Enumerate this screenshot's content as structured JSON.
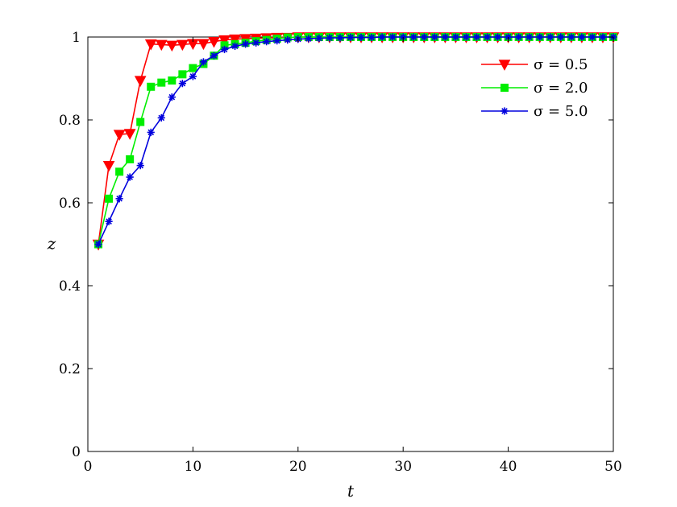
{
  "chart_data": {
    "type": "line",
    "title": "",
    "xlabel": "t",
    "ylabel": "z",
    "xlim": [
      0,
      50
    ],
    "ylim": [
      0,
      1
    ],
    "xticks": [
      0,
      10,
      20,
      30,
      40,
      50
    ],
    "yticks": [
      0,
      0.2,
      0.4,
      0.6,
      0.8,
      1
    ],
    "xtick_labels": [
      "0",
      "10",
      "20",
      "30",
      "40",
      "50"
    ],
    "ytick_labels": [
      "0",
      "0.2",
      "0.4",
      "0.6",
      "0.8",
      "1"
    ],
    "grid": false,
    "legend_position": "top-right",
    "x": [
      1,
      2,
      3,
      4,
      5,
      6,
      7,
      8,
      9,
      10,
      11,
      12,
      13,
      14,
      15,
      16,
      17,
      18,
      19,
      20,
      21,
      22,
      23,
      24,
      25,
      26,
      27,
      28,
      29,
      30,
      31,
      32,
      33,
      34,
      35,
      36,
      37,
      38,
      39,
      40,
      41,
      42,
      43,
      44,
      45,
      46,
      47,
      48,
      49,
      50
    ],
    "series": [
      {
        "name": "σ = 0.5",
        "color": "#ff0000",
        "marker": "triangle-down",
        "values": [
          0.5,
          0.69,
          0.765,
          0.767,
          0.895,
          0.983,
          0.982,
          0.98,
          0.982,
          0.984,
          0.984,
          0.989,
          0.993,
          0.995,
          0.996,
          0.997,
          0.998,
          0.999,
          0.999,
          1.0,
          1.0,
          1.0,
          1.0,
          1.0,
          1.0,
          1.0,
          1.0,
          1.0,
          1.0,
          1.0,
          1.0,
          1.0,
          1.0,
          1.0,
          1.0,
          1.0,
          1.0,
          1.0,
          1.0,
          1.0,
          1.0,
          1.0,
          1.0,
          1.0,
          1.0,
          1.0,
          1.0,
          1.0,
          1.0,
          1.0
        ]
      },
      {
        "name": "σ = 2.0",
        "color": "#00ee00",
        "marker": "square",
        "values": [
          0.5,
          0.61,
          0.675,
          0.705,
          0.795,
          0.88,
          0.89,
          0.895,
          0.91,
          0.925,
          0.935,
          0.955,
          0.98,
          0.983,
          0.986,
          0.99,
          0.993,
          0.996,
          0.999,
          1.0,
          1.0,
          1.0,
          1.0,
          1.0,
          1.0,
          1.0,
          1.0,
          1.0,
          1.0,
          1.0,
          1.0,
          1.0,
          1.0,
          1.0,
          1.0,
          1.0,
          1.0,
          1.0,
          1.0,
          1.0,
          1.0,
          1.0,
          1.0,
          1.0,
          1.0,
          1.0,
          1.0,
          1.0,
          1.0,
          1.0
        ]
      },
      {
        "name": "σ = 5.0",
        "color": "#0000dd",
        "marker": "asterisk",
        "values": [
          0.5,
          0.555,
          0.61,
          0.662,
          0.69,
          0.77,
          0.805,
          0.855,
          0.888,
          0.905,
          0.94,
          0.955,
          0.97,
          0.978,
          0.983,
          0.986,
          0.989,
          0.991,
          0.993,
          0.995,
          0.996,
          0.997,
          0.998,
          0.998,
          0.999,
          0.999,
          0.999,
          1.0,
          1.0,
          1.0,
          1.0,
          1.0,
          1.0,
          1.0,
          1.0,
          1.0,
          1.0,
          1.0,
          1.0,
          1.0,
          1.0,
          1.0,
          1.0,
          1.0,
          1.0,
          1.0,
          1.0,
          1.0,
          1.0,
          1.0
        ]
      }
    ]
  }
}
